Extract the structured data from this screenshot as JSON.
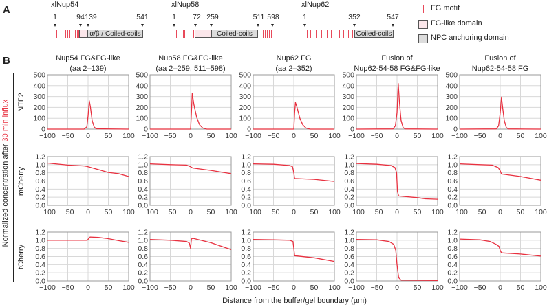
{
  "panel_a": {
    "letter": "A",
    "proteins": [
      {
        "name": "xlNup54",
        "positions": [
          "1",
          "94",
          "139",
          "541"
        ],
        "domain_label": "α/β / Coiled-coils"
      },
      {
        "name": "xlNup58",
        "positions": [
          "1",
          "72",
          "259",
          "511",
          "598"
        ],
        "domain_label": "Coiled-coils"
      },
      {
        "name": "xlNup62",
        "positions": [
          "1",
          "352",
          "547"
        ],
        "domain_label": "Coiled-coils"
      }
    ],
    "legend": [
      {
        "label": "FG motif",
        "symbol": "red-tick"
      },
      {
        "label": "FG-like domain",
        "symbol": "pink-box"
      },
      {
        "label": "NPC anchoring domain",
        "symbol": "gray-box"
      }
    ],
    "colors": {
      "fg_motif": "#e8495a",
      "fg_like": "#fbe6ea",
      "npc_anchoring": "#dcdcdc"
    }
  },
  "panel_b": {
    "letter": "B",
    "columns": [
      {
        "title1": "Nup54 FG&FG-like",
        "title2": "(aa 2–139)"
      },
      {
        "title1": "Nup58 FG&FG-like",
        "title2": "(aa 2–259, 511–598)"
      },
      {
        "title1": "Nup62 FG",
        "title2": "(aa 2–352)"
      },
      {
        "title1": "Fusion of",
        "title2": "Nup62-54-58 FG&FG-like"
      },
      {
        "title1": "Fusion of",
        "title2": "Nup62-54-58 FG"
      }
    ],
    "rows": [
      "NTF2",
      "mCherry",
      "tCherry"
    ],
    "ylabel_prefix": "Normalized concentration after ",
    "ylabel_highlight": "30 min influx",
    "xlabel": "Distance from the buffer/gel boundary (µm)",
    "line_color": "#e8303f",
    "highlight_color": "#e8303f"
  },
  "chart_data": [
    {
      "type": "line",
      "row": "NTF2",
      "column": "Nup54 FG&FG-like (aa 2–139)",
      "xlim": [
        -100,
        100
      ],
      "ylim": [
        0,
        500
      ],
      "xticks": [
        -100,
        -50,
        0,
        50,
        100
      ],
      "yticks": [
        0,
        100,
        200,
        300,
        400,
        500
      ],
      "grid": true,
      "points": [
        [
          -100,
          0
        ],
        [
          -10,
          0
        ],
        [
          -3,
          20
        ],
        [
          0,
          120
        ],
        [
          3,
          260
        ],
        [
          6,
          200
        ],
        [
          10,
          80
        ],
        [
          15,
          20
        ],
        [
          20,
          3
        ],
        [
          100,
          0
        ]
      ]
    },
    {
      "type": "line",
      "row": "NTF2",
      "column": "Nup58 FG&FG-like (aa 2–259, 511–598)",
      "xlim": [
        -100,
        100
      ],
      "ylim": [
        0,
        500
      ],
      "xticks": [
        -100,
        -50,
        0,
        50,
        100
      ],
      "yticks": [
        0,
        100,
        200,
        300,
        400,
        500
      ],
      "grid": true,
      "points": [
        [
          -100,
          0
        ],
        [
          0,
          0
        ],
        [
          2,
          150
        ],
        [
          4,
          330
        ],
        [
          8,
          230
        ],
        [
          15,
          110
        ],
        [
          22,
          40
        ],
        [
          30,
          10
        ],
        [
          40,
          0
        ],
        [
          100,
          0
        ]
      ]
    },
    {
      "type": "line",
      "row": "NTF2",
      "column": "Nup62 FG (aa 2–352)",
      "xlim": [
        -100,
        100
      ],
      "ylim": [
        0,
        500
      ],
      "xticks": [
        -100,
        -50,
        0,
        50,
        100
      ],
      "yticks": [
        0,
        100,
        200,
        300,
        400,
        500
      ],
      "grid": true,
      "points": [
        [
          -100,
          0
        ],
        [
          0,
          0
        ],
        [
          2,
          150
        ],
        [
          4,
          245
        ],
        [
          8,
          200
        ],
        [
          15,
          100
        ],
        [
          22,
          40
        ],
        [
          30,
          10
        ],
        [
          40,
          0
        ],
        [
          100,
          0
        ]
      ]
    },
    {
      "type": "line",
      "row": "NTF2",
      "column": "Fusion of Nup62-54-58 FG&FG-like",
      "xlim": [
        -100,
        100
      ],
      "ylim": [
        0,
        500
      ],
      "xticks": [
        -100,
        -50,
        0,
        50,
        100
      ],
      "yticks": [
        0,
        100,
        200,
        300,
        400,
        500
      ],
      "grid": true,
      "points": [
        [
          -100,
          0
        ],
        [
          -10,
          2
        ],
        [
          -4,
          30
        ],
        [
          0,
          150
        ],
        [
          3,
          420
        ],
        [
          6,
          250
        ],
        [
          10,
          80
        ],
        [
          15,
          15
        ],
        [
          20,
          2
        ],
        [
          100,
          0
        ]
      ]
    },
    {
      "type": "line",
      "row": "NTF2",
      "column": "Fusion of Nup62-54-58 FG",
      "xlim": [
        -100,
        100
      ],
      "ylim": [
        0,
        500
      ],
      "xticks": [
        -100,
        -50,
        0,
        50,
        100
      ],
      "yticks": [
        0,
        100,
        200,
        300,
        400,
        500
      ],
      "grid": true,
      "points": [
        [
          -100,
          0
        ],
        [
          -10,
          2
        ],
        [
          -4,
          30
        ],
        [
          0,
          150
        ],
        [
          3,
          295
        ],
        [
          6,
          200
        ],
        [
          10,
          80
        ],
        [
          15,
          15
        ],
        [
          20,
          2
        ],
        [
          100,
          0
        ]
      ]
    },
    {
      "type": "line",
      "row": "mCherry",
      "column": "Nup54 FG&FG-like (aa 2–139)",
      "xlim": [
        -100,
        100
      ],
      "ylim": [
        0,
        1.2
      ],
      "xticks": [
        -100,
        -50,
        0,
        50,
        100
      ],
      "yticks": [
        "0.0",
        "0.2",
        "0.4",
        "0.6",
        "0.8",
        "1.0",
        "1.2"
      ],
      "grid": true,
      "points": [
        [
          -100,
          1.04
        ],
        [
          -50,
          0.99
        ],
        [
          -10,
          0.97
        ],
        [
          -3,
          0.96
        ],
        [
          0,
          0.95
        ],
        [
          25,
          0.88
        ],
        [
          50,
          0.81
        ],
        [
          75,
          0.78
        ],
        [
          100,
          0.71
        ]
      ]
    },
    {
      "type": "line",
      "row": "mCherry",
      "column": "Nup58 FG&FG-like (aa 2–259, 511–598)",
      "xlim": [
        -100,
        100
      ],
      "ylim": [
        0,
        1.2
      ],
      "xticks": [
        -100,
        -50,
        0,
        50,
        100
      ],
      "yticks": [
        "0.0",
        "0.2",
        "0.4",
        "0.6",
        "0.8",
        "1.0",
        "1.2"
      ],
      "grid": true,
      "points": [
        [
          -100,
          1.02
        ],
        [
          -50,
          1.0
        ],
        [
          -10,
          0.99
        ],
        [
          0,
          0.95
        ],
        [
          5,
          0.92
        ],
        [
          50,
          0.86
        ],
        [
          100,
          0.78
        ]
      ]
    },
    {
      "type": "line",
      "row": "mCherry",
      "column": "Nup62 FG (aa 2–352)",
      "xlim": [
        -100,
        100
      ],
      "ylim": [
        0,
        1.2
      ],
      "xticks": [
        -100,
        -50,
        0,
        50,
        100
      ],
      "yticks": [
        "0.0",
        "0.2",
        "0.4",
        "0.6",
        "0.8",
        "1.0",
        "1.2"
      ],
      "grid": true,
      "points": [
        [
          -100,
          1.02
        ],
        [
          -50,
          1.01
        ],
        [
          -10,
          0.98
        ],
        [
          -3,
          0.95
        ],
        [
          0,
          0.8
        ],
        [
          2,
          0.66
        ],
        [
          50,
          0.64
        ],
        [
          100,
          0.59
        ]
      ]
    },
    {
      "type": "line",
      "row": "mCherry",
      "column": "Fusion of Nup62-54-58 FG&FG-like",
      "xlim": [
        -100,
        100
      ],
      "ylim": [
        0,
        1.2
      ],
      "xticks": [
        -100,
        -50,
        0,
        50,
        100
      ],
      "yticks": [
        "0.0",
        "0.2",
        "0.4",
        "0.6",
        "0.8",
        "1.0",
        "1.2"
      ],
      "grid": true,
      "points": [
        [
          -100,
          1.03
        ],
        [
          -50,
          1.01
        ],
        [
          -15,
          0.98
        ],
        [
          -5,
          0.93
        ],
        [
          -1,
          0.8
        ],
        [
          1,
          0.35
        ],
        [
          4,
          0.23
        ],
        [
          50,
          0.19
        ],
        [
          70,
          0.16
        ],
        [
          100,
          0.15
        ]
      ]
    },
    {
      "type": "line",
      "row": "mCherry",
      "column": "Fusion of Nup62-54-58 FG",
      "xlim": [
        -100,
        100
      ],
      "ylim": [
        0,
        1.2
      ],
      "xticks": [
        -100,
        -50,
        0,
        50,
        100
      ],
      "yticks": [
        "0.0",
        "0.2",
        "0.4",
        "0.6",
        "0.8",
        "1.0",
        "1.2"
      ],
      "grid": true,
      "points": [
        [
          -100,
          1.02
        ],
        [
          -50,
          1.0
        ],
        [
          -20,
          0.99
        ],
        [
          -5,
          0.93
        ],
        [
          0,
          0.85
        ],
        [
          3,
          0.77
        ],
        [
          50,
          0.71
        ],
        [
          100,
          0.62
        ]
      ]
    },
    {
      "type": "line",
      "row": "tCherry",
      "column": "Nup54 FG&FG-like (aa 2–139)",
      "xlim": [
        -100,
        100
      ],
      "ylim": [
        0,
        1.2
      ],
      "xticks": [
        -100,
        -50,
        0,
        50,
        100
      ],
      "yticks": [
        "0.0",
        "0.2",
        "0.4",
        "0.6",
        "0.8",
        "1.0",
        "1.2"
      ],
      "grid": true,
      "points": [
        [
          -100,
          1.0
        ],
        [
          -50,
          1.0
        ],
        [
          -2,
          1.0
        ],
        [
          5,
          1.08
        ],
        [
          25,
          1.07
        ],
        [
          50,
          1.04
        ],
        [
          75,
          0.99
        ],
        [
          100,
          0.95
        ]
      ]
    },
    {
      "type": "line",
      "row": "tCherry",
      "column": "Nup58 FG&FG-like (aa 2–259, 511–598)",
      "xlim": [
        -100,
        100
      ],
      "ylim": [
        0,
        1.2
      ],
      "xticks": [
        -100,
        -50,
        0,
        50,
        100
      ],
      "yticks": [
        "0.0",
        "0.2",
        "0.4",
        "0.6",
        "0.8",
        "1.0",
        "1.2"
      ],
      "grid": true,
      "points": [
        [
          -100,
          1.02
        ],
        [
          -50,
          1.0
        ],
        [
          -10,
          0.97
        ],
        [
          -3,
          0.93
        ],
        [
          0,
          0.8
        ],
        [
          2,
          1.03
        ],
        [
          5,
          1.05
        ],
        [
          50,
          0.94
        ],
        [
          100,
          0.77
        ]
      ]
    },
    {
      "type": "line",
      "row": "tCherry",
      "column": "Nup62 FG (aa 2–352)",
      "xlim": [
        -100,
        100
      ],
      "ylim": [
        0,
        1.2
      ],
      "xticks": [
        -100,
        -50,
        0,
        50,
        100
      ],
      "yticks": [
        "0.0",
        "0.2",
        "0.4",
        "0.6",
        "0.8",
        "1.0",
        "1.2"
      ],
      "grid": true,
      "points": [
        [
          -100,
          1.02
        ],
        [
          -50,
          1.01
        ],
        [
          -10,
          1.0
        ],
        [
          -2,
          0.97
        ],
        [
          0,
          0.8
        ],
        [
          2,
          0.62
        ],
        [
          50,
          0.57
        ],
        [
          100,
          0.48
        ]
      ]
    },
    {
      "type": "line",
      "row": "tCherry",
      "column": "Fusion of Nup62-54-58 FG&FG-like",
      "xlim": [
        -100,
        100
      ],
      "ylim": [
        0,
        1.2
      ],
      "xticks": [
        -100,
        -50,
        0,
        50,
        100
      ],
      "yticks": [
        "0.0",
        "0.2",
        "0.4",
        "0.6",
        "0.8",
        "1.0",
        "1.2"
      ],
      "grid": true,
      "points": [
        [
          -100,
          1.02
        ],
        [
          -50,
          1.01
        ],
        [
          -20,
          0.97
        ],
        [
          -8,
          0.9
        ],
        [
          -3,
          0.75
        ],
        [
          0,
          0.4
        ],
        [
          4,
          0.08
        ],
        [
          10,
          0.02
        ],
        [
          100,
          0.01
        ]
      ]
    },
    {
      "type": "line",
      "row": "tCherry",
      "column": "Fusion of Nup62-54-58 FG",
      "xlim": [
        -100,
        100
      ],
      "ylim": [
        0,
        1.2
      ],
      "xticks": [
        -100,
        -50,
        0,
        50,
        100
      ],
      "yticks": [
        "0.0",
        "0.2",
        "0.4",
        "0.6",
        "0.8",
        "1.0",
        "1.2"
      ],
      "grid": true,
      "points": [
        [
          -100,
          1.03
        ],
        [
          -50,
          1.01
        ],
        [
          -25,
          0.97
        ],
        [
          -10,
          0.9
        ],
        [
          -3,
          0.85
        ],
        [
          0,
          0.75
        ],
        [
          3,
          0.69
        ],
        [
          50,
          0.66
        ],
        [
          100,
          0.61
        ]
      ]
    }
  ]
}
